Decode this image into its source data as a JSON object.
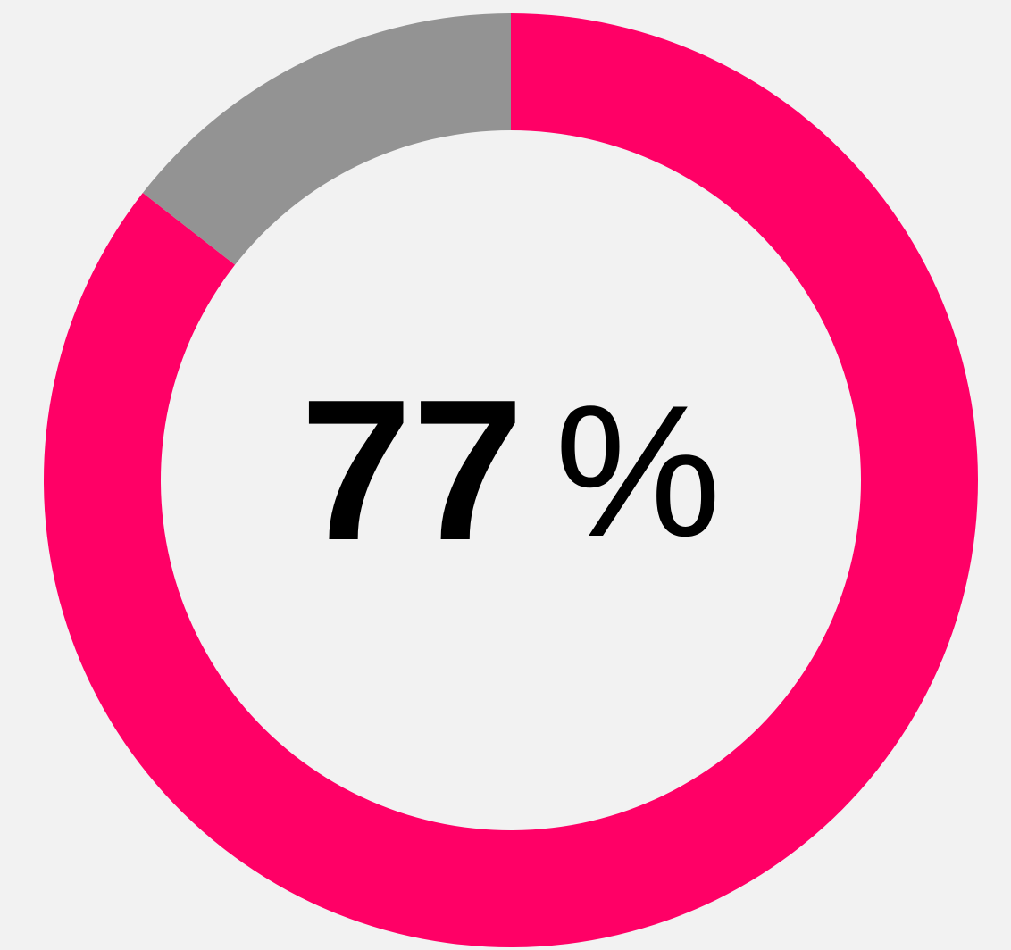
{
  "chart_data": {
    "type": "donut",
    "values": [
      77,
      13
    ],
    "colors": [
      "#ff0066",
      "#939393"
    ],
    "unit": "%"
  }
}
